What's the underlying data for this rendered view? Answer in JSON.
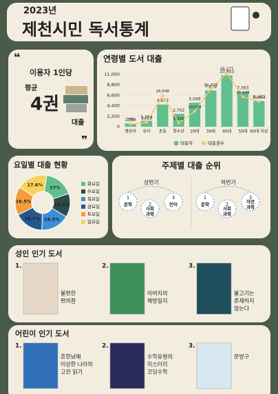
{
  "header": {
    "year": "2023년",
    "title": "제천시민 독서통계"
  },
  "average": {
    "label": "이용자 1인당",
    "sub": "평균",
    "value": "4권",
    "unit": "대출"
  },
  "chart_data": [
    {
      "type": "bar",
      "title": "연령별 도서 대출",
      "categories": [
        "영유아",
        "유아",
        "초등",
        "청소년",
        "20대",
        "30대",
        "40대",
        "50대",
        "60대 이상"
      ],
      "series": [
        {
          "name": "대출자",
          "color": "#5fc08e",
          "values": [
            709,
            1254,
            4673,
            2702,
            5049,
            7629,
            10803,
            7363,
            5407
          ],
          "value_labels": [
            "709",
            "1,254",
            "4,673",
            "2,702",
            "5,049",
            "7,629",
            "10,803",
            "7,363",
            "5,407"
          ]
        },
        {
          "name": "대출권수",
          "color": "#f4c96b",
          "axis": "y2",
          "values": [
            2254,
            3551,
            26548,
            3319,
            13074,
            31729,
            45277,
            25149,
            21311
          ],
          "value_labels": [
            "2,254",
            "3,551",
            "26,548",
            "3,319",
            "13,074",
            "31,729",
            "45,277",
            "25,149",
            "21,311"
          ]
        }
      ],
      "ylim": [
        0,
        11000
      ],
      "yticks": [
        0,
        {
          "value": 2200,
          "label": "2,200"
        },
        {
          "value": 4400,
          "label": "4,400"
        },
        {
          "value": 6600,
          "label": "6,600"
        },
        {
          "value": 8800,
          "label": "8,800"
        },
        {
          "value": 11000,
          "label": "11,000"
        }
      ],
      "y2lim": [
        0,
        50000
      ],
      "legend": "bottom"
    },
    {
      "type": "pie",
      "title": "요일별 대출 현황",
      "donut": true,
      "categories": [
        "화요일",
        "수요일",
        "목요일",
        "금요일",
        "토요일",
        "일요일"
      ],
      "values": [
        17,
        13.6,
        16.5,
        16.7,
        16.5,
        17.6
      ],
      "value_labels": [
        "17%",
        "13.6%",
        "16.5%",
        "16.7%",
        "16.5%",
        "17.6%"
      ],
      "colors": [
        "#5fc08e",
        "#2f4a4a",
        "#3b8fd6",
        "#25578f",
        "#f29d3a",
        "#f6d35c"
      ],
      "legend": "right"
    }
  ],
  "ranking": {
    "title": "주제별 대출 순위",
    "halves": [
      {
        "name": "상반기",
        "items": [
          {
            "rank": "1",
            "name": "문학"
          },
          {
            "rank": "2",
            "name": "사회\n과학"
          },
          {
            "rank": "3",
            "name": "언어"
          }
        ]
      },
      {
        "name": "하반기",
        "items": [
          {
            "rank": "1",
            "name": "문학"
          },
          {
            "rank": "2",
            "name": "사회\n과학"
          },
          {
            "rank": "3",
            "name": "자연\n과학"
          }
        ]
      }
    ]
  },
  "books": [
    {
      "title": "성인 인기 도서",
      "items": [
        {
          "rank": "1.",
          "lines": [
            "불편한",
            "편의점"
          ]
        },
        {
          "rank": "2.",
          "lines": [
            "아버지의",
            "해방일지"
          ]
        },
        {
          "rank": "3.",
          "lines": [
            "물고기는",
            "존재하지",
            "않는다"
          ]
        }
      ]
    },
    {
      "title": "어린이 인기 도서",
      "items": [
        {
          "rank": "1.",
          "lines": [
            "흔한남매",
            "이상한 나라의",
            "고전 읽기"
          ]
        },
        {
          "rank": "2.",
          "lines": [
            "수학유령의",
            "미스터리",
            "코딩수학"
          ]
        },
        {
          "rank": "3.",
          "lines": [
            "문방구"
          ]
        }
      ]
    }
  ]
}
